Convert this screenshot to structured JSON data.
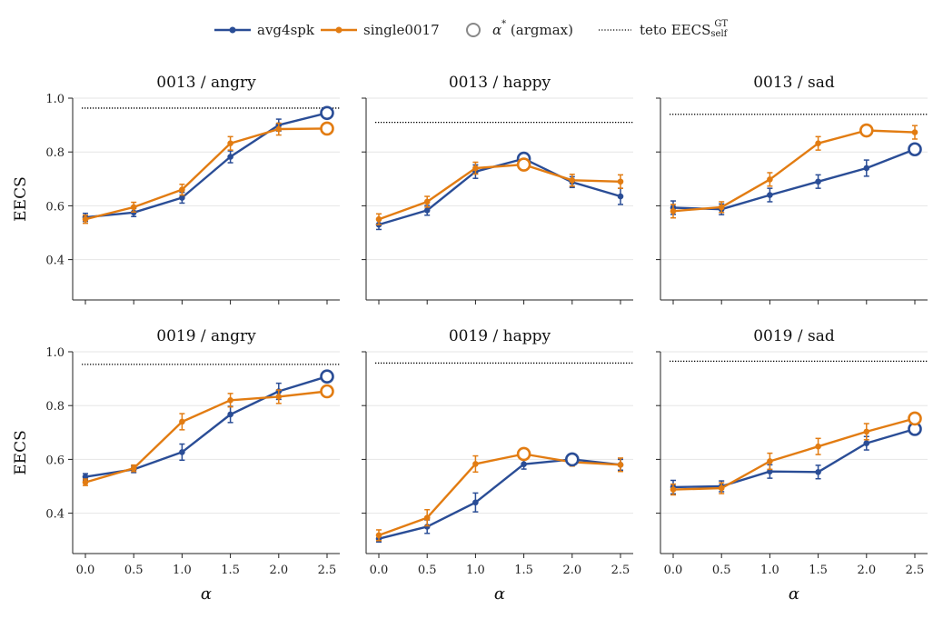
{
  "legend": {
    "avg_label": "avg4spk",
    "single_label": "single0017",
    "argmax_label_symbol": "α",
    "argmax_label_star": "*",
    "argmax_label_rest": " (argmax)",
    "ref_label_main": "teto EECS",
    "ref_label_sup": "GT",
    "ref_label_sub": "self"
  },
  "colors": {
    "avg": "#2a4d96",
    "single": "#e27c12",
    "reference": "#000000",
    "grid": "#e6e6e6",
    "axis": "#222222"
  },
  "chart_data": [
    {
      "type": "line",
      "title": "0013 / angry",
      "xlabel": "",
      "ylabel": "EECS",
      "x": [
        0.0,
        0.5,
        1.0,
        1.5,
        2.0,
        2.5
      ],
      "xticks": [
        "0.0",
        "0.5",
        "1.0",
        "1.5",
        "2.0",
        "2.5"
      ],
      "yticks": [
        "0.4",
        "0.6",
        "0.8",
        "1.0"
      ],
      "ylim": [
        0.25,
        1.0
      ],
      "reference": 0.963,
      "series": [
        {
          "name": "avg4spk",
          "key": "avg",
          "values": [
            0.557,
            0.575,
            0.63,
            0.782,
            0.9,
            0.945
          ],
          "err": [
            0.015,
            0.015,
            0.02,
            0.022,
            0.022,
            0.015
          ],
          "argmax_index": 5
        },
        {
          "name": "single0017",
          "key": "single",
          "values": [
            0.55,
            0.595,
            0.66,
            0.832,
            0.885,
            0.887
          ],
          "err": [
            0.015,
            0.018,
            0.02,
            0.025,
            0.022,
            0.015
          ],
          "argmax_index": 5
        }
      ]
    },
    {
      "type": "line",
      "title": "0013 / happy",
      "xlabel": "",
      "ylabel": "",
      "x": [
        0.0,
        0.5,
        1.0,
        1.5,
        2.0,
        2.5
      ],
      "xticks": [
        "0.0",
        "0.5",
        "1.0",
        "1.5",
        "2.0",
        "2.5"
      ],
      "yticks": [
        "0.4",
        "0.6",
        "0.8",
        "1.0"
      ],
      "ylim": [
        0.25,
        1.0
      ],
      "reference": 0.91,
      "series": [
        {
          "name": "avg4spk",
          "key": "avg",
          "values": [
            0.53,
            0.583,
            0.727,
            0.775,
            0.688,
            0.635
          ],
          "err": [
            0.018,
            0.018,
            0.025,
            0.015,
            0.02,
            0.03
          ],
          "argmax_index": 3
        },
        {
          "name": "single0017",
          "key": "single",
          "values": [
            0.55,
            0.615,
            0.74,
            0.753,
            0.695,
            0.69
          ],
          "err": [
            0.02,
            0.02,
            0.022,
            0.018,
            0.022,
            0.025
          ],
          "argmax_index": 3
        }
      ]
    },
    {
      "type": "line",
      "title": "0013 / sad",
      "xlabel": "",
      "ylabel": "",
      "x": [
        0.0,
        0.5,
        1.0,
        1.5,
        2.0,
        2.5
      ],
      "xticks": [
        "0.0",
        "0.5",
        "1.0",
        "1.5",
        "2.0",
        "2.5"
      ],
      "yticks": [
        "0.4",
        "0.6",
        "0.8",
        "1.0"
      ],
      "ylim": [
        0.25,
        1.0
      ],
      "reference": 0.94,
      "series": [
        {
          "name": "avg4spk",
          "key": "avg",
          "values": [
            0.593,
            0.587,
            0.64,
            0.69,
            0.74,
            0.81
          ],
          "err": [
            0.025,
            0.02,
            0.025,
            0.025,
            0.03,
            0.02
          ],
          "argmax_index": 5
        },
        {
          "name": "single0017",
          "key": "single",
          "values": [
            0.58,
            0.595,
            0.698,
            0.832,
            0.88,
            0.873
          ],
          "err": [
            0.025,
            0.02,
            0.025,
            0.025,
            0.015,
            0.025
          ],
          "argmax_index": 4
        }
      ]
    },
    {
      "type": "line",
      "title": "0019 / angry",
      "xlabel": "α",
      "ylabel": "EECS",
      "x": [
        0.0,
        0.5,
        1.0,
        1.5,
        2.0,
        2.5
      ],
      "xticks": [
        "0.0",
        "0.5",
        "1.0",
        "1.5",
        "2.0",
        "2.5"
      ],
      "yticks": [
        "0.4",
        "0.6",
        "0.8",
        "1.0"
      ],
      "ylim": [
        0.25,
        1.0
      ],
      "reference": 0.953,
      "series": [
        {
          "name": "avg4spk",
          "key": "avg",
          "values": [
            0.535,
            0.563,
            0.627,
            0.767,
            0.853,
            0.908
          ],
          "err": [
            0.012,
            0.012,
            0.03,
            0.03,
            0.03,
            0.015
          ],
          "argmax_index": 5
        },
        {
          "name": "single0017",
          "key": "single",
          "values": [
            0.515,
            0.567,
            0.74,
            0.82,
            0.833,
            0.853
          ],
          "err": [
            0.012,
            0.012,
            0.03,
            0.025,
            0.025,
            0.012
          ],
          "argmax_index": 5
        }
      ]
    },
    {
      "type": "line",
      "title": "0019 / happy",
      "xlabel": "α",
      "ylabel": "",
      "x": [
        0.0,
        0.5,
        1.0,
        1.5,
        2.0,
        2.5
      ],
      "xticks": [
        "0.0",
        "0.5",
        "1.0",
        "1.5",
        "2.0",
        "2.5"
      ],
      "yticks": [
        "0.4",
        "0.6",
        "0.8",
        "1.0"
      ],
      "ylim": [
        0.25,
        1.0
      ],
      "reference": 0.958,
      "series": [
        {
          "name": "avg4spk",
          "key": "avg",
          "values": [
            0.305,
            0.35,
            0.44,
            0.582,
            0.6,
            0.58
          ],
          "err": [
            0.012,
            0.025,
            0.035,
            0.018,
            0.012,
            0.02
          ],
          "argmax_index": 4
        },
        {
          "name": "single0017",
          "key": "single",
          "values": [
            0.318,
            0.383,
            0.583,
            0.62,
            0.59,
            0.58
          ],
          "err": [
            0.02,
            0.03,
            0.03,
            0.015,
            0.015,
            0.025
          ],
          "argmax_index": 3
        }
      ]
    },
    {
      "type": "line",
      "title": "0019 / sad",
      "xlabel": "α",
      "ylabel": "",
      "x": [
        0.0,
        0.5,
        1.0,
        1.5,
        2.0,
        2.5
      ],
      "xticks": [
        "0.0",
        "0.5",
        "1.0",
        "1.5",
        "2.0",
        "2.5"
      ],
      "yticks": [
        "0.4",
        "0.6",
        "0.8",
        "1.0"
      ],
      "ylim": [
        0.25,
        1.0
      ],
      "reference": 0.965,
      "series": [
        {
          "name": "avg4spk",
          "key": "avg",
          "values": [
            0.497,
            0.5,
            0.555,
            0.553,
            0.66,
            0.713
          ],
          "err": [
            0.025,
            0.02,
            0.025,
            0.025,
            0.025,
            0.015
          ],
          "argmax_index": 5
        },
        {
          "name": "single0017",
          "key": "single",
          "values": [
            0.488,
            0.493,
            0.593,
            0.648,
            0.703,
            0.752
          ],
          "err": [
            0.02,
            0.02,
            0.03,
            0.03,
            0.03,
            0.015
          ],
          "argmax_index": 5
        }
      ]
    }
  ]
}
